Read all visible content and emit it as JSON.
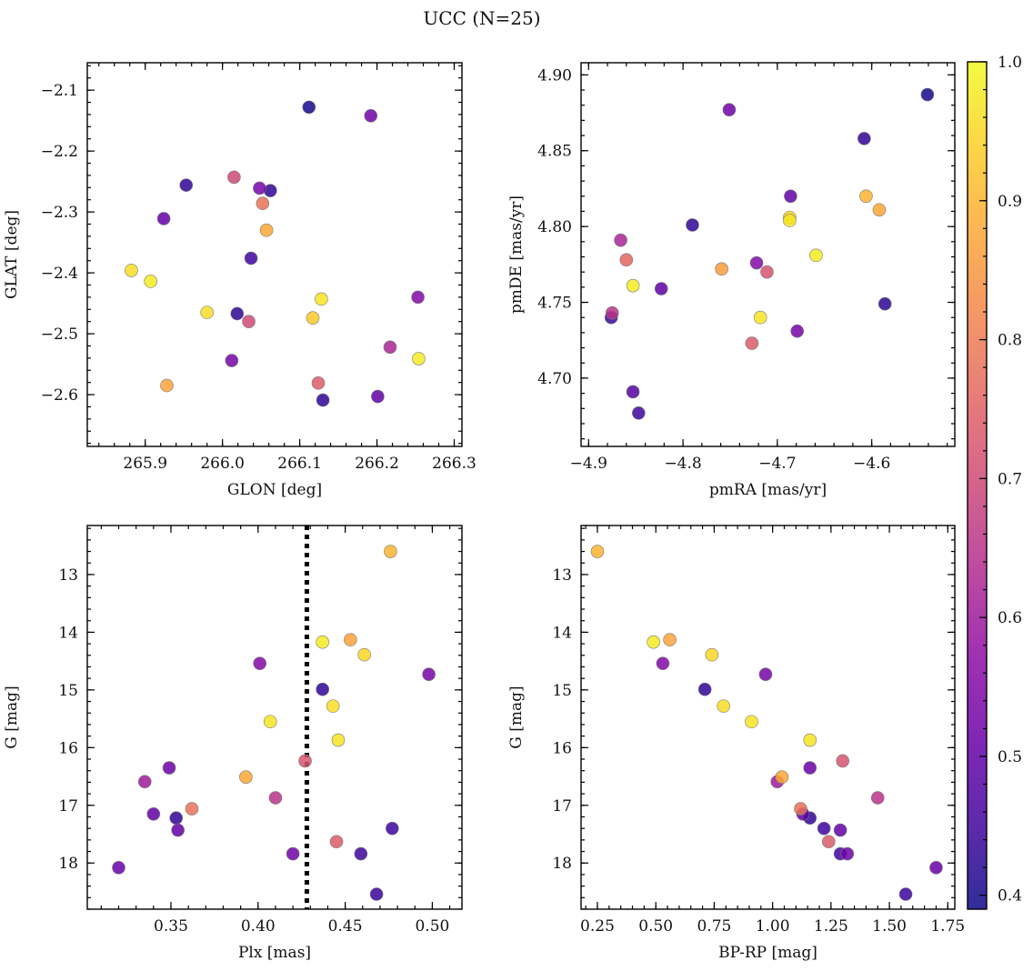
{
  "title": "UCC (N=25)",
  "colors": {
    "frame": "#000000",
    "background": "#ffffff",
    "colormap": "plasma"
  },
  "colorbar": {
    "min": 0.39,
    "max": 1.0,
    "ticks": [
      0.4,
      0.5,
      0.6,
      0.7,
      0.8,
      0.9,
      1.0
    ],
    "tick_labels": [
      "0.4",
      "0.5",
      "0.6",
      "0.7",
      "0.8",
      "0.9",
      "1.0"
    ]
  },
  "chart_data": [
    {
      "type": "scatter",
      "xlabel": "GLON [deg]",
      "ylabel": "GLAT [deg]",
      "xlim": [
        265.825,
        266.31
      ],
      "ylim": [
        -2.685,
        -2.055
      ],
      "xticks": [
        265.9,
        266.0,
        266.1,
        266.2,
        266.3
      ],
      "xtick_labels": [
        "265.9",
        "266.0",
        "266.1",
        "266.2",
        "266.3"
      ],
      "yticks": [
        -2.1,
        -2.2,
        -2.3,
        -2.4,
        -2.5,
        -2.6
      ],
      "ytick_labels": [
        "−2.1",
        "−2.2",
        "−2.3",
        "−2.4",
        "−2.5",
        "−2.6"
      ],
      "y_inverted": false,
      "points": [
        {
          "x": 266.112,
          "y": -2.128,
          "c": 0.4
        },
        {
          "x": 266.192,
          "y": -2.142,
          "c": 0.52
        },
        {
          "x": 266.015,
          "y": -2.243,
          "c": 0.7
        },
        {
          "x": 265.953,
          "y": -2.256,
          "c": 0.43
        },
        {
          "x": 266.048,
          "y": -2.261,
          "c": 0.53
        },
        {
          "x": 266.062,
          "y": -2.265,
          "c": 0.43
        },
        {
          "x": 266.052,
          "y": -2.286,
          "c": 0.78
        },
        {
          "x": 265.924,
          "y": -2.311,
          "c": 0.5
        },
        {
          "x": 266.057,
          "y": -2.33,
          "c": 0.88
        },
        {
          "x": 266.037,
          "y": -2.376,
          "c": 0.45
        },
        {
          "x": 265.882,
          "y": -2.396,
          "c": 0.96
        },
        {
          "x": 265.907,
          "y": -2.414,
          "c": 0.98
        },
        {
          "x": 266.128,
          "y": -2.443,
          "c": 0.97
        },
        {
          "x": 266.253,
          "y": -2.44,
          "c": 0.55
        },
        {
          "x": 265.98,
          "y": -2.465,
          "c": 0.96
        },
        {
          "x": 266.019,
          "y": -2.467,
          "c": 0.43
        },
        {
          "x": 266.034,
          "y": -2.48,
          "c": 0.7
        },
        {
          "x": 266.117,
          "y": -2.474,
          "c": 0.93
        },
        {
          "x": 266.217,
          "y": -2.522,
          "c": 0.62
        },
        {
          "x": 266.254,
          "y": -2.541,
          "c": 0.98
        },
        {
          "x": 266.012,
          "y": -2.544,
          "c": 0.53
        },
        {
          "x": 265.928,
          "y": -2.585,
          "c": 0.87
        },
        {
          "x": 266.124,
          "y": -2.581,
          "c": 0.74
        },
        {
          "x": 266.201,
          "y": -2.603,
          "c": 0.5
        },
        {
          "x": 266.13,
          "y": -2.609,
          "c": 0.43
        }
      ]
    },
    {
      "type": "scatter",
      "xlabel": "pmRA [mas/yr]",
      "ylabel": "pmDE [mas/yr]",
      "xlim": [
        -4.908,
        -4.512
      ],
      "ylim": [
        4.655,
        4.908
      ],
      "xticks": [
        -4.9,
        -4.8,
        -4.7,
        -4.6
      ],
      "xtick_labels": [
        "−4.9",
        "−4.8",
        "−4.7",
        "−4.6"
      ],
      "yticks": [
        4.7,
        4.75,
        4.8,
        4.85,
        4.9
      ],
      "ytick_labels": [
        "4.70",
        "4.75",
        "4.80",
        "4.85",
        "4.90"
      ],
      "y_inverted": false,
      "points": [
        {
          "x": -4.541,
          "y": 4.887,
          "c": 0.4
        },
        {
          "x": -4.751,
          "y": 4.877,
          "c": 0.52
        },
        {
          "x": -4.608,
          "y": 4.858,
          "c": 0.43
        },
        {
          "x": -4.686,
          "y": 4.82,
          "c": 0.5
        },
        {
          "x": -4.606,
          "y": 4.82,
          "c": 0.9
        },
        {
          "x": -4.592,
          "y": 4.811,
          "c": 0.88
        },
        {
          "x": -4.687,
          "y": 4.804,
          "c": 0.97
        },
        {
          "x": -4.687,
          "y": 4.806,
          "c": 0.95
        },
        {
          "x": -4.79,
          "y": 4.801,
          "c": 0.43
        },
        {
          "x": -4.866,
          "y": 4.791,
          "c": 0.62
        },
        {
          "x": -4.659,
          "y": 4.781,
          "c": 0.98
        },
        {
          "x": -4.86,
          "y": 4.778,
          "c": 0.76
        },
        {
          "x": -4.722,
          "y": 4.776,
          "c": 0.55
        },
        {
          "x": -4.759,
          "y": 4.772,
          "c": 0.86
        },
        {
          "x": -4.711,
          "y": 4.77,
          "c": 0.72
        },
        {
          "x": -4.853,
          "y": 4.761,
          "c": 0.98
        },
        {
          "x": -4.823,
          "y": 4.759,
          "c": 0.5
        },
        {
          "x": -4.586,
          "y": 4.749,
          "c": 0.43
        },
        {
          "x": -4.875,
          "y": 4.743,
          "c": 0.65
        },
        {
          "x": -4.876,
          "y": 4.74,
          "c": 0.44
        },
        {
          "x": -4.718,
          "y": 4.74,
          "c": 0.97
        },
        {
          "x": -4.679,
          "y": 4.731,
          "c": 0.53
        },
        {
          "x": -4.727,
          "y": 4.723,
          "c": 0.74
        },
        {
          "x": -4.853,
          "y": 4.691,
          "c": 0.48
        },
        {
          "x": -4.847,
          "y": 4.677,
          "c": 0.45
        }
      ]
    },
    {
      "type": "scatter",
      "xlabel": "Plx [mas]",
      "ylabel": "G [mag]",
      "xlim": [
        0.302,
        0.517
      ],
      "ylim": [
        18.8,
        12.15
      ],
      "xticks": [
        0.35,
        0.4,
        0.45,
        0.5
      ],
      "xtick_labels": [
        "0.35",
        "0.40",
        "0.45",
        "0.50"
      ],
      "yticks": [
        13,
        14,
        15,
        16,
        17,
        18
      ],
      "ytick_labels": [
        "13",
        "14",
        "15",
        "16",
        "17",
        "18"
      ],
      "y_inverted": true,
      "vline": 0.428,
      "points": [
        {
          "x": 0.476,
          "y": 12.6,
          "c": 0.9
        },
        {
          "x": 0.437,
          "y": 14.17,
          "c": 0.98
        },
        {
          "x": 0.453,
          "y": 14.13,
          "c": 0.87
        },
        {
          "x": 0.461,
          "y": 14.39,
          "c": 0.95
        },
        {
          "x": 0.401,
          "y": 14.54,
          "c": 0.55
        },
        {
          "x": 0.498,
          "y": 14.73,
          "c": 0.53
        },
        {
          "x": 0.437,
          "y": 14.99,
          "c": 0.43
        },
        {
          "x": 0.443,
          "y": 15.28,
          "c": 0.96
        },
        {
          "x": 0.407,
          "y": 15.55,
          "c": 0.97
        },
        {
          "x": 0.446,
          "y": 15.87,
          "c": 0.97
        },
        {
          "x": 0.427,
          "y": 16.23,
          "c": 0.72
        },
        {
          "x": 0.349,
          "y": 16.35,
          "c": 0.51
        },
        {
          "x": 0.393,
          "y": 16.51,
          "c": 0.88
        },
        {
          "x": 0.335,
          "y": 16.59,
          "c": 0.6
        },
        {
          "x": 0.41,
          "y": 16.87,
          "c": 0.65
        },
        {
          "x": 0.362,
          "y": 17.06,
          "c": 0.78
        },
        {
          "x": 0.34,
          "y": 17.15,
          "c": 0.5
        },
        {
          "x": 0.353,
          "y": 17.22,
          "c": 0.43
        },
        {
          "x": 0.477,
          "y": 17.4,
          "c": 0.45
        },
        {
          "x": 0.354,
          "y": 17.43,
          "c": 0.5
        },
        {
          "x": 0.445,
          "y": 17.63,
          "c": 0.74
        },
        {
          "x": 0.42,
          "y": 17.84,
          "c": 0.52
        },
        {
          "x": 0.459,
          "y": 17.84,
          "c": 0.45
        },
        {
          "x": 0.32,
          "y": 18.08,
          "c": 0.51
        },
        {
          "x": 0.468,
          "y": 18.54,
          "c": 0.44
        }
      ]
    },
    {
      "type": "scatter",
      "xlabel": "BP-RP [mag]",
      "ylabel": "G [mag]",
      "xlim": [
        0.18,
        1.78
      ],
      "ylim": [
        18.8,
        12.15
      ],
      "xticks": [
        0.25,
        0.5,
        0.75,
        1.0,
        1.25,
        1.5,
        1.75
      ],
      "xtick_labels": [
        "0.25",
        "0.50",
        "0.75",
        "1.00",
        "1.25",
        "1.50",
        "1.75"
      ],
      "yticks": [
        13,
        14,
        15,
        16,
        17,
        18
      ],
      "ytick_labels": [
        "13",
        "14",
        "15",
        "16",
        "17",
        "18"
      ],
      "y_inverted": true,
      "points": [
        {
          "x": 0.25,
          "y": 12.6,
          "c": 0.9
        },
        {
          "x": 0.49,
          "y": 14.17,
          "c": 0.98
        },
        {
          "x": 0.56,
          "y": 14.13,
          "c": 0.87
        },
        {
          "x": 0.74,
          "y": 14.39,
          "c": 0.95
        },
        {
          "x": 0.53,
          "y": 14.54,
          "c": 0.55
        },
        {
          "x": 0.97,
          "y": 14.73,
          "c": 0.53
        },
        {
          "x": 0.71,
          "y": 14.99,
          "c": 0.43
        },
        {
          "x": 0.79,
          "y": 15.28,
          "c": 0.96
        },
        {
          "x": 0.91,
          "y": 15.55,
          "c": 0.97
        },
        {
          "x": 1.16,
          "y": 15.87,
          "c": 0.97
        },
        {
          "x": 1.3,
          "y": 16.23,
          "c": 0.72
        },
        {
          "x": 1.16,
          "y": 16.35,
          "c": 0.51
        },
        {
          "x": 1.04,
          "y": 16.51,
          "c": 0.88
        },
        {
          "x": 1.02,
          "y": 16.59,
          "c": 0.6
        },
        {
          "x": 1.45,
          "y": 16.87,
          "c": 0.65
        },
        {
          "x": 1.12,
          "y": 17.06,
          "c": 0.78
        },
        {
          "x": 1.13,
          "y": 17.15,
          "c": 0.5
        },
        {
          "x": 1.16,
          "y": 17.22,
          "c": 0.43
        },
        {
          "x": 1.22,
          "y": 17.4,
          "c": 0.45
        },
        {
          "x": 1.29,
          "y": 17.43,
          "c": 0.5
        },
        {
          "x": 1.24,
          "y": 17.63,
          "c": 0.74
        },
        {
          "x": 1.32,
          "y": 17.84,
          "c": 0.52
        },
        {
          "x": 1.29,
          "y": 17.84,
          "c": 0.45
        },
        {
          "x": 1.7,
          "y": 18.08,
          "c": 0.51
        },
        {
          "x": 1.57,
          "y": 18.54,
          "c": 0.44
        }
      ]
    }
  ]
}
